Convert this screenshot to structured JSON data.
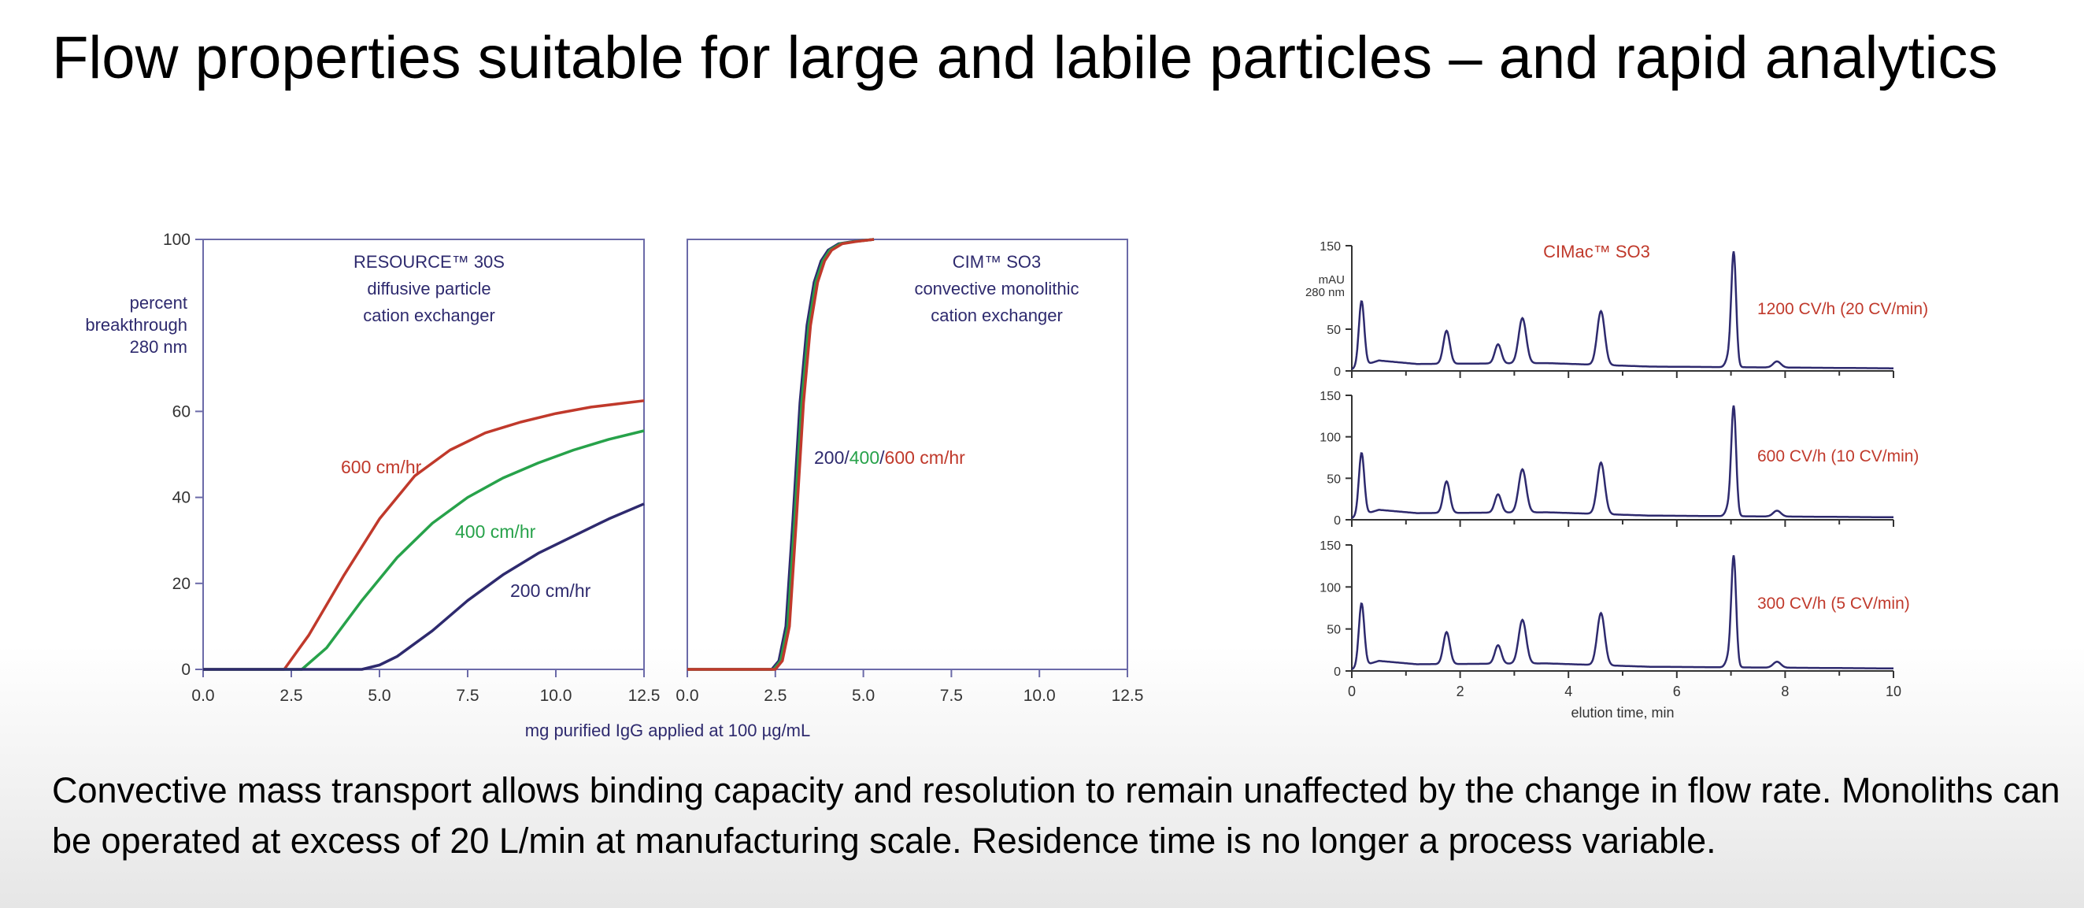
{
  "title": "Flow properties suitable for large and labile particles – and rapid analytics",
  "caption": "Convective mass transport allows binding capacity and resolution to remain unaffected by the change in flow rate. Monoliths can be operated at excess of 20 L/min at manufacturing scale. Residence time is no longer a process variable.",
  "colors": {
    "red": "#c0392b",
    "green": "#27a24a",
    "navy": "#2e2a6e",
    "frame": "#6b6aa8"
  },
  "chart_data": [
    {
      "type": "line",
      "title": "RESOURCE™ 30S diffusive particle cation exchanger",
      "title_lines": [
        "RESOURCE™ 30S",
        "diffusive particle",
        "cation exchanger"
      ],
      "ylabel_lines": [
        "percent",
        "breakthrough",
        "280 nm"
      ],
      "xlabel": "mg purified IgG applied at 100 µg/mL",
      "xlim": [
        0,
        12.5
      ],
      "ylim": [
        0,
        100
      ],
      "xticks": [
        "0.0",
        "2.5",
        "5.0",
        "7.5",
        "10.0",
        "12.5"
      ],
      "yticks": [
        "0",
        "20",
        "40",
        "60",
        "100"
      ],
      "series": [
        {
          "name": "600 cm/hr",
          "color": "red",
          "x": [
            0,
            2.3,
            3.0,
            4.0,
            5.0,
            6.0,
            7.0,
            8.0,
            9.0,
            10.0,
            11.0,
            12.5
          ],
          "y": [
            0,
            0,
            8,
            22,
            35,
            45,
            51,
            55,
            57.5,
            59.5,
            61,
            62.5
          ]
        },
        {
          "name": "400 cm/hr",
          "color": "green",
          "x": [
            0,
            2.8,
            3.5,
            4.5,
            5.5,
            6.5,
            7.5,
            8.5,
            9.5,
            10.5,
            11.5,
            12.5
          ],
          "y": [
            0,
            0,
            5,
            16,
            26,
            34,
            40,
            44.5,
            48,
            51,
            53.5,
            55.5
          ]
        },
        {
          "name": "200 cm/hr",
          "color": "navy",
          "x": [
            0,
            4.5,
            5.0,
            5.5,
            6.5,
            7.5,
            8.5,
            9.5,
            10.5,
            11.5,
            12.5
          ],
          "y": [
            0,
            0,
            1,
            3,
            9,
            16,
            22,
            27,
            31,
            35,
            38.5
          ]
        }
      ]
    },
    {
      "type": "line",
      "title": "CIM™ SO3 convective monolithic cation exchanger",
      "title_lines": [
        "CIM™ SO3",
        "convective monolithic",
        "cation exchanger"
      ],
      "xlim": [
        0,
        12.5
      ],
      "ylim": [
        0,
        100
      ],
      "xticks": [
        "0.0",
        "2.5",
        "5.0",
        "7.5",
        "10.0",
        "12.5"
      ],
      "label_parts": [
        {
          "text": "200",
          "color": "navy"
        },
        {
          "text": "/",
          "color": "navy"
        },
        {
          "text": "400",
          "color": "green"
        },
        {
          "text": "/",
          "color": "navy"
        },
        {
          "text": "600 cm/hr",
          "color": "red"
        }
      ],
      "series": [
        {
          "name": "200",
          "color": "navy",
          "x": [
            0,
            2.4,
            2.6,
            2.8,
            3.0,
            3.2,
            3.4,
            3.6,
            3.8,
            4.0,
            4.3,
            4.7,
            5.3
          ],
          "y": [
            0,
            0,
            2,
            10,
            35,
            62,
            80,
            90,
            95,
            97.5,
            99,
            99.5,
            100
          ]
        },
        {
          "name": "400",
          "color": "green",
          "x": [
            0,
            2.45,
            2.65,
            2.85,
            3.05,
            3.25,
            3.45,
            3.65,
            3.85,
            4.05,
            4.35,
            4.75,
            5.3
          ],
          "y": [
            0,
            0,
            2,
            10,
            35,
            62,
            80,
            90,
            95,
            97.5,
            99,
            99.5,
            100
          ]
        },
        {
          "name": "600",
          "color": "red",
          "x": [
            0,
            2.5,
            2.7,
            2.9,
            3.1,
            3.3,
            3.5,
            3.7,
            3.9,
            4.1,
            4.4,
            4.8,
            5.3
          ],
          "y": [
            0,
            0,
            2,
            10,
            35,
            62,
            80,
            90,
            95,
            97.5,
            99,
            99.5,
            100
          ]
        }
      ]
    },
    {
      "type": "line",
      "title": "CIMac™ SO3",
      "ylabel_lines": [
        "mAU",
        "280 nm"
      ],
      "xlabel": "elution time, min",
      "xlim": [
        0,
        10
      ],
      "ylim": [
        0,
        150
      ],
      "xticks": [
        "0",
        "2",
        "4",
        "6",
        "8",
        "10"
      ],
      "yticks": [
        "0",
        "50",
        "100",
        "150"
      ],
      "panels": [
        {
          "name": "1200 CV/h (20 CV/min)",
          "yticks": [
            "0",
            "50",
            "150"
          ]
        },
        {
          "name": "600 CV/h (10 CV/min)",
          "yticks": [
            "0",
            "50",
            "100",
            "150"
          ]
        },
        {
          "name": "300 CV/h (5 CV/min)",
          "yticks": [
            "0",
            "50",
            "100",
            "150"
          ]
        }
      ],
      "peaks": [
        {
          "t": 0.18,
          "h": 75,
          "w": 0.05
        },
        {
          "t": 1.75,
          "h": 38,
          "w": 0.06
        },
        {
          "t": 2.7,
          "h": 22,
          "w": 0.06
        },
        {
          "t": 3.15,
          "h": 52,
          "w": 0.07
        },
        {
          "t": 4.6,
          "h": 62,
          "w": 0.07
        },
        {
          "t": 6.95,
          "h": 10,
          "w": 0.05
        },
        {
          "t": 7.05,
          "h": 132,
          "w": 0.045
        },
        {
          "t": 7.85,
          "h": 7,
          "w": 0.07
        }
      ],
      "baseline": [
        {
          "t": 0,
          "v": 2
        },
        {
          "t": 0.5,
          "v": 12
        },
        {
          "t": 1.2,
          "v": 8
        },
        {
          "t": 3.6,
          "v": 9
        },
        {
          "t": 5.5,
          "v": 5
        },
        {
          "t": 10,
          "v": 3
        }
      ]
    }
  ]
}
